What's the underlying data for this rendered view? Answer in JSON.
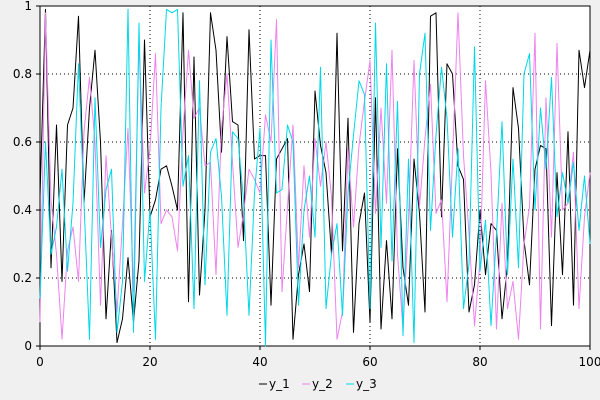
{
  "chart_data": {
    "type": "line",
    "title": "",
    "xlabel": "",
    "ylabel": "",
    "xlim": [
      0,
      100
    ],
    "ylim": [
      0,
      1
    ],
    "grid": true,
    "legend_placement": "bottom-center",
    "x_ticks": [
      "0",
      "20",
      "40",
      "60",
      "80",
      "100"
    ],
    "y_ticks": [
      "0",
      "0.2",
      "0.4",
      "0.6",
      "0.8",
      "1"
    ],
    "series": [
      {
        "name": "y_1",
        "color": "#000000",
        "values": [
          0.44,
          0.99,
          0.23,
          0.65,
          0.19,
          0.65,
          0.7,
          0.97,
          0.42,
          0.7,
          0.87,
          0.6,
          0.08,
          0.34,
          0.01,
          0.08,
          0.26,
          0.07,
          0.25,
          0.9,
          0.38,
          0.43,
          0.52,
          0.53,
          0.47,
          0.4,
          0.98,
          0.13,
          0.85,
          0.15,
          0.4,
          0.98,
          0.87,
          0.57,
          0.91,
          0.66,
          0.65,
          0.31,
          0.93,
          0.55,
          0.56,
          0.56,
          0.12,
          0.55,
          0.58,
          0.61,
          0.02,
          0.21,
          0.3,
          0.16,
          0.75,
          0.59,
          0.51,
          0.27,
          0.92,
          0.28,
          0.67,
          0.04,
          0.36,
          0.45,
          0.07,
          0.73,
          0.05,
          0.31,
          0.08,
          0.58,
          0.23,
          0.12,
          0.55,
          0.39,
          0.1,
          0.97,
          0.98,
          0.38,
          0.83,
          0.8,
          0.53,
          0.49,
          0.1,
          0.18,
          0.4,
          0.21,
          0.36,
          0.34,
          0.08,
          0.24,
          0.76,
          0.64,
          0.31,
          0.18,
          0.52,
          0.59,
          0.58,
          0.06,
          0.51,
          0.21,
          0.63,
          0.12,
          0.87,
          0.76,
          0.87
        ]
      },
      {
        "name": "y_2",
        "color": "#ee82ee",
        "values": [
          0.07,
          0.98,
          0.43,
          0.27,
          0.02,
          0.28,
          0.35,
          0.19,
          0.63,
          0.79,
          0.6,
          0.12,
          0.56,
          0.32,
          0.1,
          0.36,
          0.64,
          0.16,
          0.9,
          0.45,
          0.58,
          0.86,
          0.36,
          0.4,
          0.38,
          0.28,
          0.63,
          0.87,
          0.67,
          0.7,
          0.53,
          0.54,
          0.21,
          0.64,
          0.8,
          0.54,
          0.29,
          0.39,
          0.52,
          0.49,
          0.45,
          0.68,
          0.6,
          0.96,
          0.16,
          0.41,
          0.65,
          0.23,
          0.53,
          0.32,
          0.61,
          0.47,
          0.6,
          0.44,
          0.02,
          0.1,
          0.58,
          0.35,
          0.59,
          0.72,
          0.84,
          0.39,
          0.7,
          0.42,
          0.87,
          0.27,
          0.05,
          0.37,
          0.84,
          0.41,
          0.61,
          0.77,
          0.39,
          0.43,
          0.13,
          0.55,
          0.98,
          0.56,
          0.33,
          0.06,
          0.25,
          0.78,
          0.51,
          0.05,
          0.42,
          0.11,
          0.19,
          0.02,
          0.3,
          0.41,
          0.92,
          0.05,
          0.73,
          0.32,
          0.89,
          0.4,
          0.42,
          0.57,
          0.11,
          0.38,
          0.51
        ]
      },
      {
        "name": "y_3",
        "color": "#00d8e8",
        "values": [
          0.14,
          0.6,
          0.27,
          0.35,
          0.52,
          0.22,
          0.42,
          0.83,
          0.42,
          0.02,
          0.73,
          0.29,
          0.46,
          0.52,
          0.04,
          0.19,
          0.99,
          0.04,
          0.95,
          0.19,
          0.4,
          0.02,
          0.7,
          0.99,
          0.98,
          0.99,
          0.47,
          0.56,
          0.11,
          0.78,
          0.18,
          0.57,
          0.61,
          0.44,
          0.09,
          0.63,
          0.61,
          0.43,
          0.09,
          0.45,
          0.64,
          0.0,
          0.9,
          0.45,
          0.46,
          0.65,
          0.6,
          0.12,
          0.4,
          0.5,
          0.32,
          0.82,
          0.11,
          0.27,
          0.36,
          0.09,
          0.45,
          0.62,
          0.78,
          0.74,
          0.11,
          0.95,
          0.29,
          0.83,
          0.25,
          0.72,
          0.03,
          0.55,
          0.01,
          0.8,
          0.92,
          0.34,
          0.62,
          0.82,
          0.67,
          0.32,
          0.58,
          0.11,
          0.24,
          0.88,
          0.22,
          0.37,
          0.06,
          0.33,
          0.66,
          0.21,
          0.55,
          0.23,
          0.8,
          0.86,
          0.4,
          0.7,
          0.52,
          0.79,
          0.38,
          0.51,
          0.42,
          0.54,
          0.34,
          0.5,
          0.3
        ]
      }
    ]
  }
}
